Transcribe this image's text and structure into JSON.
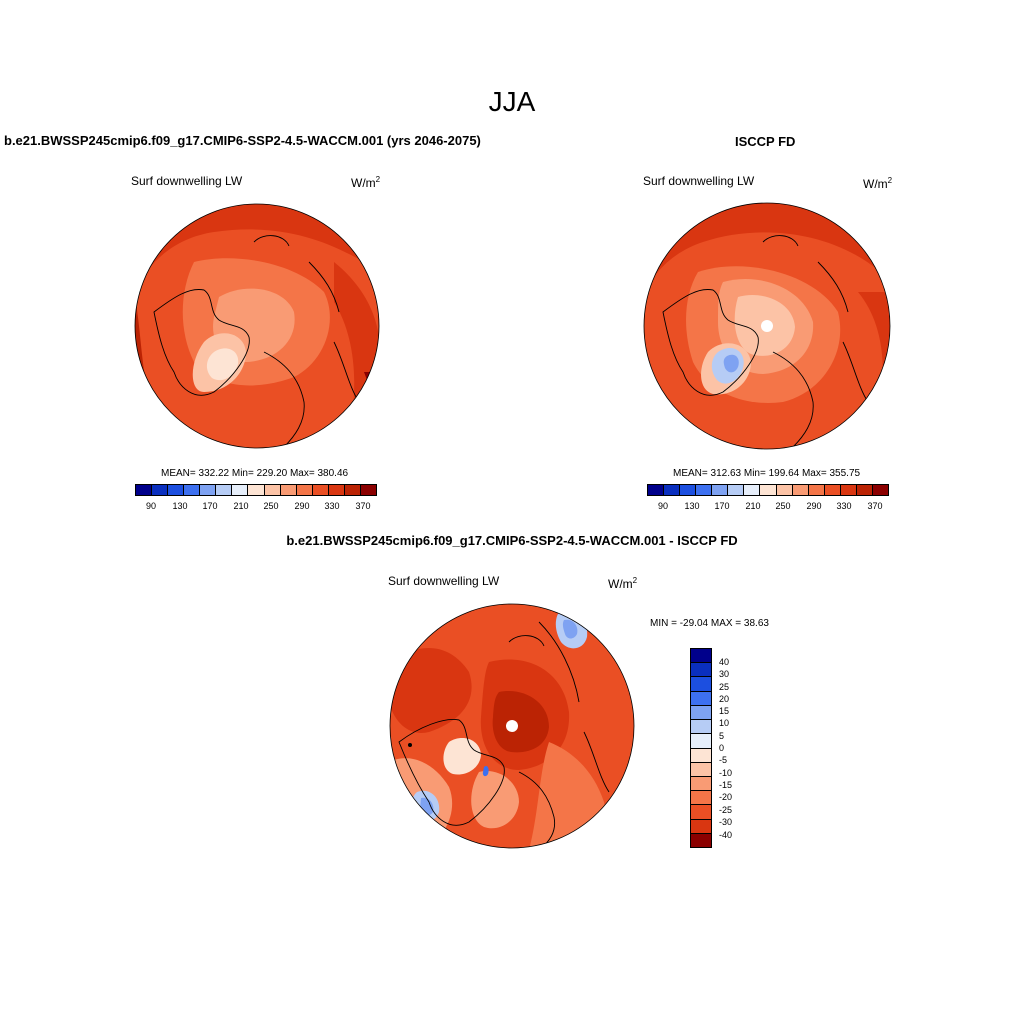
{
  "figure_title": "JJA",
  "palette_abs": [
    "#00008b",
    "#0a2fbf",
    "#1c4fe0",
    "#3d70f0",
    "#7ea2f2",
    "#b6ccf5",
    "#e6eefa",
    "#fde4d4",
    "#fcc3a6",
    "#f99b74",
    "#f47548",
    "#ea4f24",
    "#d93611",
    "#bb2304",
    "#8b0000"
  ],
  "palette_diff": [
    "#00008b",
    "#0a2fbf",
    "#1c4fe0",
    "#3d70f0",
    "#7ea2f2",
    "#b6ccf5",
    "#e6eefa",
    "#fde4d4",
    "#fcc3a6",
    "#f99b74",
    "#f47548",
    "#ea4f24",
    "#d93611",
    "#8b0000"
  ],
  "panels": {
    "model": {
      "title": "b.e21.BWSSP245cmip6.f09_g17.CMIP6-SSP2-4.5-WACCM.001 (yrs 2046-2075)",
      "variable": "Surf downwelling LW",
      "units_base": "W/m",
      "units_exp": "2",
      "stats": "MEAN= 332.22  Min= 229.20  Max= 380.46"
    },
    "obs": {
      "title": "ISCCP FD",
      "variable": "Surf downwelling LW",
      "units_base": "W/m",
      "units_exp": "2",
      "stats": "MEAN= 312.63  Min= 199.64  Max= 355.75"
    },
    "diff": {
      "title": "b.e21.BWSSP245cmip6.f09_g17.CMIP6-SSP2-4.5-WACCM.001 - ISCCP FD",
      "variable": "Surf downwelling LW",
      "units_base": "W/m",
      "units_exp": "2",
      "stats": "MIN = -29.04 MAX =  38.63"
    }
  },
  "colorbar_abs": {
    "tick_labels": [
      "90",
      "130",
      "170",
      "210",
      "250",
      "290",
      "330",
      "370"
    ]
  },
  "colorbar_diff": {
    "tick_labels": [
      "40",
      "30",
      "25",
      "20",
      "15",
      "10",
      "5",
      "0",
      "-5",
      "-10",
      "-15",
      "-20",
      "-25",
      "-30",
      "-40"
    ]
  }
}
